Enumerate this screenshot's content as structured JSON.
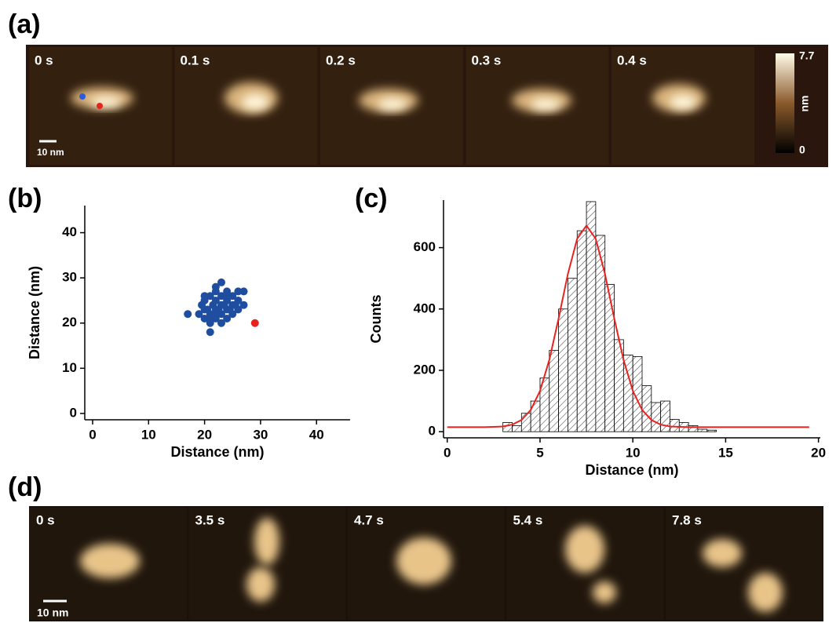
{
  "panel_labels": [
    "(a)",
    "(b)",
    "(c)",
    "(d)"
  ],
  "panel_a": {
    "frames": [
      "0 s",
      "0.1 s",
      "0.2 s",
      "0.3 s",
      "0.4 s"
    ],
    "scale_bar": "10 nm",
    "colorbar": {
      "max": 7.7,
      "min": 0,
      "unit": "nm"
    }
  },
  "panel_d": {
    "frames": [
      "0 s",
      "3.5 s",
      "4.7 s",
      "5.4 s",
      "7.8 s"
    ],
    "scale_bar": "10 nm"
  },
  "chart_data": [
    {
      "type": "scatter",
      "xlabel": "Distance (nm)",
      "ylabel": "Distance (nm)",
      "xlim": [
        -1.4,
        46
      ],
      "ylim": [
        -1.4,
        46
      ],
      "xticks": [
        0,
        10,
        20,
        30,
        40
      ],
      "yticks": [
        0,
        10,
        20,
        30,
        40
      ],
      "series": [
        {
          "color": "#1f4ea0",
          "x": [
            17,
            19,
            19.5,
            20,
            20,
            20.5,
            21,
            21,
            21,
            21.5,
            22,
            22,
            22,
            22.5,
            23,
            23,
            23,
            23.5,
            24,
            24,
            24,
            24.5,
            25,
            25,
            25.5,
            26,
            26,
            27,
            27,
            21,
            23,
            20,
            22,
            24,
            22,
            21,
            23,
            25,
            20,
            22,
            24,
            26
          ],
          "y": [
            22,
            22,
            24,
            21,
            25,
            23,
            18,
            22,
            26,
            24,
            21,
            25,
            27,
            23,
            22,
            26,
            29,
            24,
            21,
            25,
            27,
            23,
            22,
            26,
            24,
            25,
            27,
            24,
            27,
            20,
            20,
            26,
            23,
            23,
            28,
            21,
            24,
            24,
            23,
            22,
            26,
            23
          ]
        },
        {
          "color": "#e8231f",
          "x": [
            29
          ],
          "y": [
            20
          ]
        }
      ]
    },
    {
      "type": "histogram",
      "xlabel": "Distance (nm)",
      "ylabel": "Counts",
      "xlim": [
        -0.2,
        20.1
      ],
      "ylim": [
        -20,
        755
      ],
      "xticks": [
        0,
        5,
        10,
        15,
        20
      ],
      "yticks": [
        0,
        200,
        400,
        600
      ],
      "bins": [
        3,
        3.5,
        4,
        4.5,
        5,
        5.5,
        6,
        6.5,
        7,
        7.5,
        8,
        8.5,
        9,
        9.5,
        10,
        10.5,
        11,
        11.5,
        12,
        12.5,
        13,
        13.5,
        14,
        14.5
      ],
      "values": [
        30,
        20,
        60,
        100,
        175,
        265,
        400,
        500,
        655,
        750,
        640,
        480,
        300,
        250,
        245,
        150,
        95,
        100,
        40,
        30,
        20,
        8,
        5
      ],
      "fit": {
        "color": "#e8231f",
        "x": [
          0,
          2,
          3,
          3.5,
          4,
          4.5,
          5,
          5.5,
          6,
          6.5,
          7,
          7.5,
          8,
          8.5,
          9,
          9.5,
          10,
          10.5,
          11,
          11.5,
          12,
          13,
          15,
          19.5
        ],
        "values": [
          15,
          15,
          17,
          23,
          38,
          71,
          133,
          234,
          369,
          514,
          629,
          672,
          629,
          514,
          369,
          234,
          133,
          71,
          38,
          23,
          17,
          15,
          15,
          15
        ]
      }
    }
  ]
}
